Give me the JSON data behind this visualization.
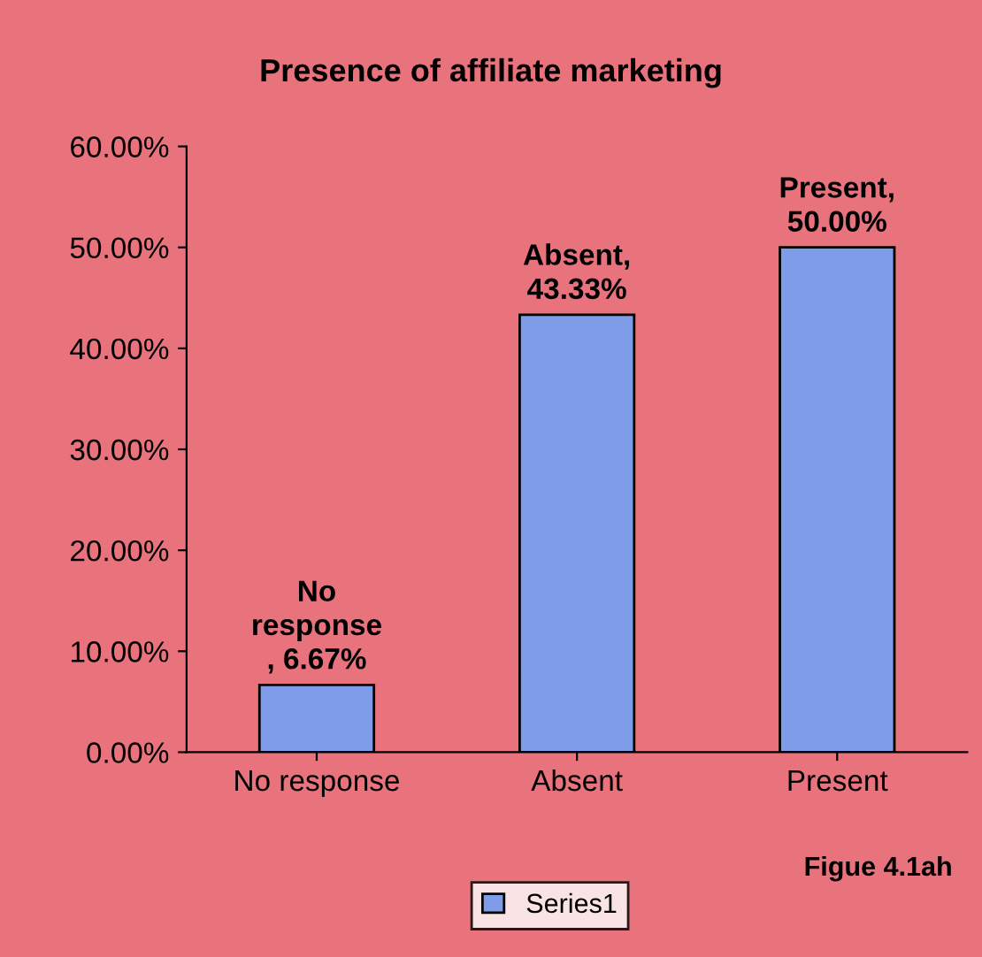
{
  "chart_data": {
    "type": "bar",
    "title": "Presence of affiliate marketing",
    "categories": [
      "No response",
      "Absent",
      "Present"
    ],
    "series": [
      {
        "name": "Series1",
        "color": "#7f9ce8",
        "values": [
          6.67,
          43.33,
          50.0
        ]
      }
    ],
    "value_labels": [
      "No\nresponse\n, 6.67%",
      "Absent,\n43.33%",
      "Present,\n50.00%"
    ],
    "ylim": [
      0,
      60
    ],
    "yticks": [
      {
        "value": 0,
        "label": "0.00%"
      },
      {
        "value": 10,
        "label": "10.00%"
      },
      {
        "value": 20,
        "label": "20.00%"
      },
      {
        "value": 30,
        "label": "30.00%"
      },
      {
        "value": 40,
        "label": "40.00%"
      },
      {
        "value": 50,
        "label": "50.00%"
      },
      {
        "value": 60,
        "label": "60.00%"
      }
    ],
    "legend": "bottom",
    "grid": false,
    "annotations": [
      "Figue 4.1ah"
    ]
  }
}
